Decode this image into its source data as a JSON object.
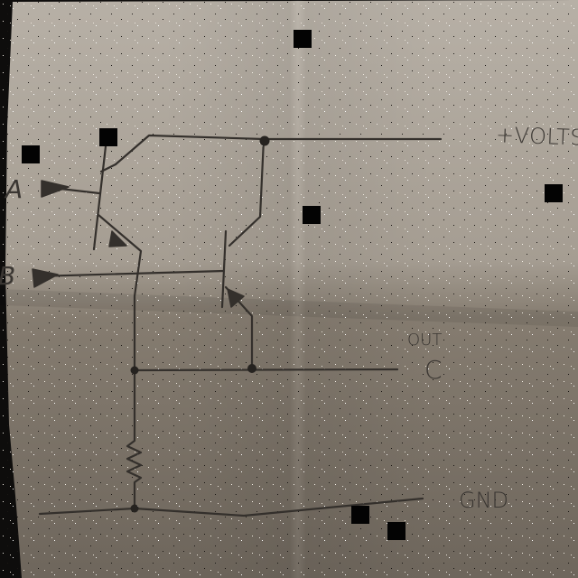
{
  "labels": {
    "input_a": "A",
    "input_b": "B",
    "supply": "+VOLTS",
    "output_tag": "OUT",
    "output_name": "C",
    "ground": "GND"
  },
  "colors": {
    "paper_light": "#b1aa9f",
    "paper_dark": "#776f65",
    "ink": "#34302c",
    "background": "#0e0d0c"
  }
}
